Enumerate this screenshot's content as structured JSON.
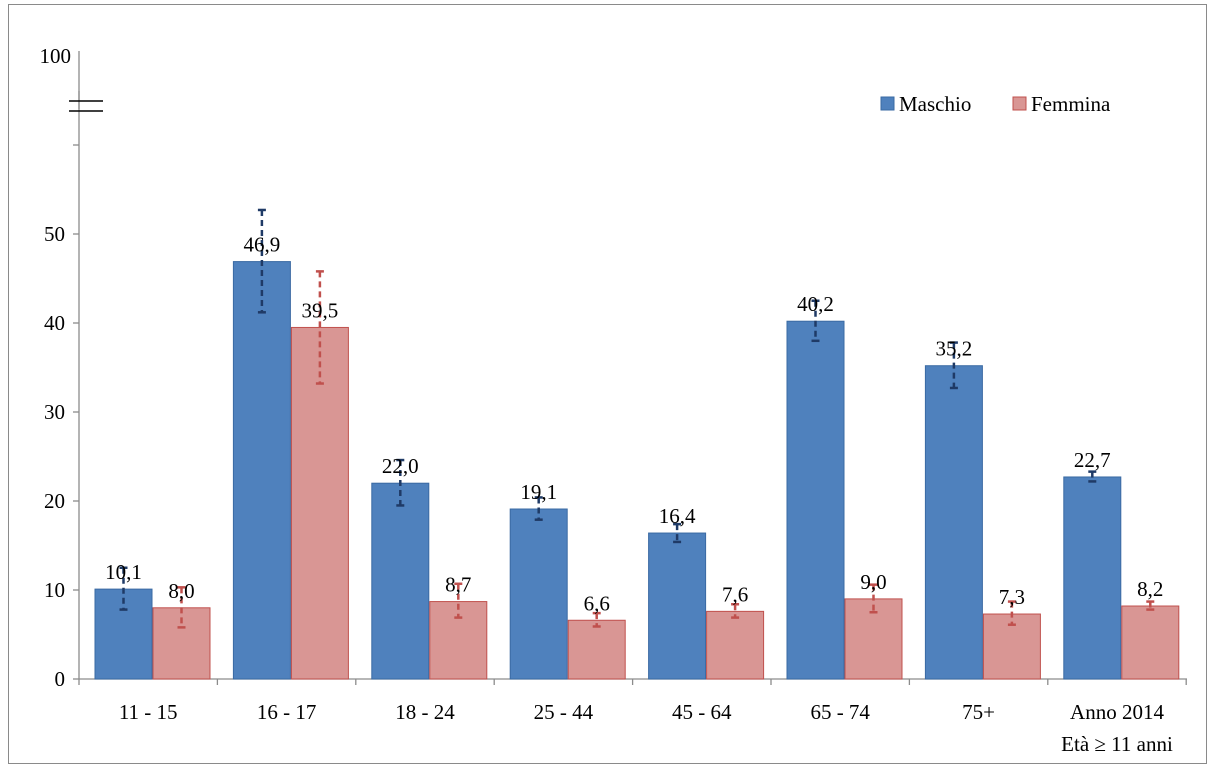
{
  "chart_data": {
    "type": "bar",
    "categories": [
      "11 - 15",
      "16 - 17",
      "18 - 24",
      "25 - 44",
      "45 - 64",
      "65 - 74",
      "75+",
      "Anno 2014"
    ],
    "category_sublabels": [
      "",
      "",
      "",
      "",
      "",
      "",
      "",
      "Età ≥ 11 anni"
    ],
    "series": [
      {
        "name": "Maschio",
        "color": "#4f81bd",
        "values": [
          10.1,
          46.9,
          22.0,
          19.1,
          16.4,
          40.2,
          35.2,
          22.7
        ],
        "labels": [
          "10,1",
          "46,9",
          "22,0",
          "19,1",
          "16,4",
          "40,2",
          "35,2",
          "22,7"
        ],
        "error_low": [
          7.8,
          41.2,
          19.5,
          17.9,
          15.4,
          38.0,
          32.7,
          22.2
        ],
        "error_high": [
          12.5,
          52.7,
          24.6,
          20.4,
          17.4,
          42.5,
          37.8,
          23.3
        ]
      },
      {
        "name": "Femmina",
        "color": "#d99694",
        "values": [
          8.0,
          39.5,
          8.7,
          6.6,
          7.6,
          9.0,
          7.3,
          8.2
        ],
        "labels": [
          "8,0",
          "39,5",
          "8,7",
          "6,6",
          "7,6",
          "9,0",
          "7,3",
          "8,2"
        ],
        "error_low": [
          5.8,
          33.2,
          6.9,
          5.9,
          6.9,
          7.5,
          6.1,
          7.8
        ],
        "error_high": [
          10.3,
          45.8,
          10.7,
          7.4,
          8.4,
          10.6,
          8.7,
          8.7
        ]
      }
    ],
    "y_ticks": [
      "0",
      "10",
      "20",
      "30",
      "40",
      "50"
    ],
    "y_break_label": "100",
    "ylim": [
      0,
      60
    ],
    "title": "",
    "xlabel": "",
    "ylabel": "",
    "legend": {
      "position": "top-right",
      "entries": [
        "Maschio",
        "Femmina"
      ]
    },
    "grid": false
  }
}
